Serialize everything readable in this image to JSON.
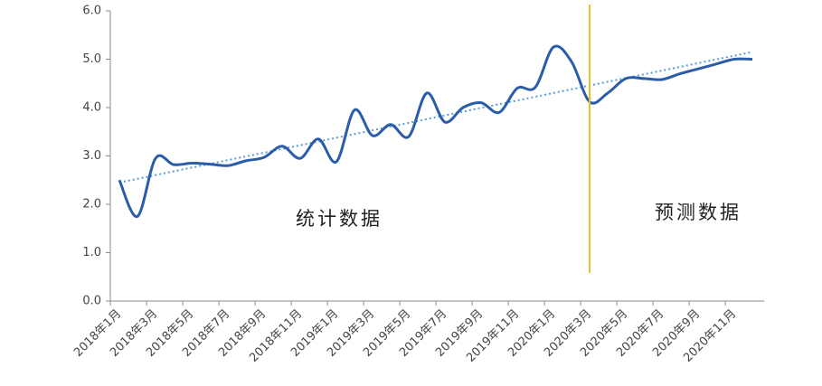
{
  "chart_data": {
    "type": "line",
    "categories": [
      "2018年1月",
      null,
      "2018年3月",
      null,
      "2018年5月",
      null,
      "2018年7月",
      null,
      "2018年9月",
      null,
      "2018年11月",
      null,
      "2019年1月",
      null,
      "2019年3月",
      null,
      "2019年5月",
      null,
      "2019年7月",
      null,
      "2019年9月",
      null,
      "2019年11月",
      null,
      "2020年1月",
      null,
      "2020年3月",
      null,
      "2020年5月",
      null,
      "2020年7月",
      null,
      "2020年9月",
      null,
      "2020年11月",
      null
    ],
    "values": [
      2.5,
      1.75,
      2.95,
      2.82,
      2.85,
      2.83,
      2.8,
      2.9,
      2.97,
      3.2,
      2.95,
      3.35,
      2.88,
      3.95,
      3.42,
      3.65,
      3.4,
      4.3,
      3.7,
      4.0,
      4.1,
      3.9,
      4.4,
      4.42,
      5.25,
      4.95,
      4.12,
      4.3,
      4.6,
      4.6,
      4.58,
      4.7,
      4.8,
      4.9,
      5.0,
      5.0
    ],
    "color": "#2a5caa",
    "trend": {
      "start": 2.45,
      "end": 5.15,
      "color": "#5b9bd5"
    },
    "forecast_start_index": 26,
    "divider_color": "#e6c229",
    "annotations": [
      "统计数据",
      "预测数据"
    ],
    "ylim": [
      0,
      6
    ],
    "yticks": [
      {
        "value": 0,
        "label": "0.0"
      },
      {
        "value": 1,
        "label": "1.0"
      },
      {
        "value": 2,
        "label": "2.0"
      },
      {
        "value": 3,
        "label": "3.0"
      },
      {
        "value": 4,
        "label": "4.0"
      },
      {
        "value": 5,
        "label": "5.0"
      },
      {
        "value": 6,
        "label": "6.0"
      }
    ],
    "grid": false
  }
}
